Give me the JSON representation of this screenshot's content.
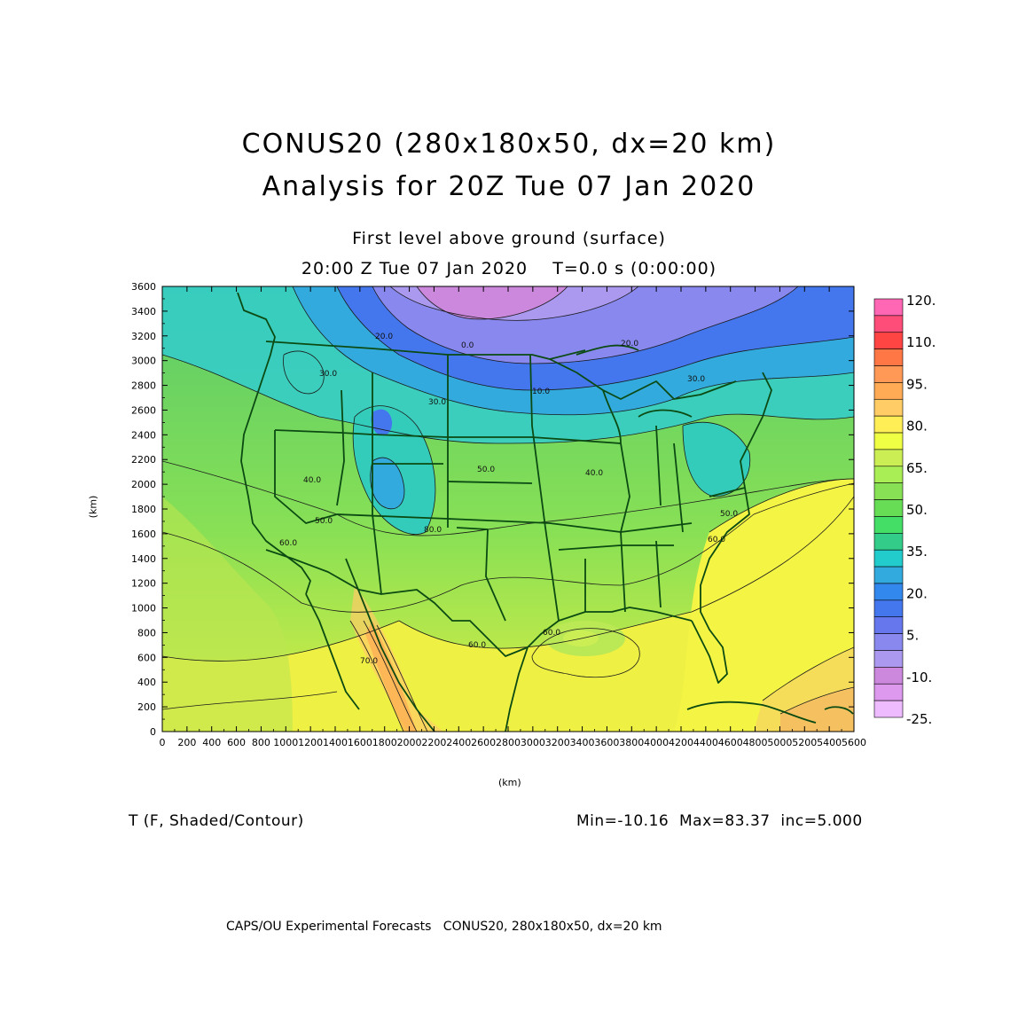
{
  "header": {
    "title_line1": "CONUS20 (280x180x50, dx=20 km)",
    "title_line2": "Analysis for 20Z Tue 07 Jan 2020",
    "subtitle_line1": "First level above ground (surface)",
    "subtitle_line2": "20:00 Z Tue 07 Jan 2020    T=0.0 s (0:00:00)"
  },
  "axes": {
    "x_label": "(km)",
    "y_label": "(km)",
    "x_ticks": [
      "0",
      "200",
      "400",
      "600",
      "800",
      "1000",
      "1200",
      "1400",
      "1600",
      "1800",
      "2000",
      "2200",
      "2400",
      "2600",
      "2800",
      "3000",
      "3200",
      "3400",
      "3600",
      "3800",
      "4000",
      "4200",
      "4400",
      "4600",
      "4800",
      "5000",
      "5200",
      "5400",
      "5600"
    ],
    "y_ticks": [
      "0",
      "200",
      "400",
      "600",
      "800",
      "1000",
      "1200",
      "1400",
      "1600",
      "1800",
      "2000",
      "2200",
      "2400",
      "2600",
      "2800",
      "3000",
      "3200",
      "3400",
      "3600"
    ],
    "x_range": [
      0,
      5600
    ],
    "y_range": [
      0,
      3600
    ]
  },
  "contour_labels": [
    "0.0",
    "10.0",
    "20.0",
    "20.0",
    "30.0",
    "30.0",
    "30.0",
    "40.0",
    "40.0",
    "50.0",
    "50.0",
    "50.0",
    "60.0",
    "60.0",
    "60.0",
    "60.0",
    "70.0",
    "80.0"
  ],
  "colorbar": {
    "labels": [
      "120.",
      "110.",
      "95.",
      "80.",
      "65.",
      "50.",
      "35.",
      "20.",
      "5.",
      "-10.",
      "-25."
    ],
    "colors": [
      "#ff66b3",
      "#ff4d79",
      "#ff4444",
      "#ff7744",
      "#ff9955",
      "#ffaa55",
      "#ffcc66",
      "#ffee55",
      "#eeff44",
      "#ccee55",
      "#aaee55",
      "#88e055",
      "#66dd55",
      "#44dd66",
      "#33cc88",
      "#22cccc",
      "#33aadd",
      "#3388ee",
      "#4477ee",
      "#6677ee",
      "#8888ee",
      "#aa99ee",
      "#cc88dd",
      "#dd99ee",
      "#eebbff"
    ]
  },
  "footer": {
    "variable": "T (F, Shaded/Contour)",
    "stats": "Min=-10.16  Max=83.37  inc=5.000",
    "credit": "CAPS/OU Experimental Forecasts   CONUS20, 280x180x50, dx=20 km"
  }
}
